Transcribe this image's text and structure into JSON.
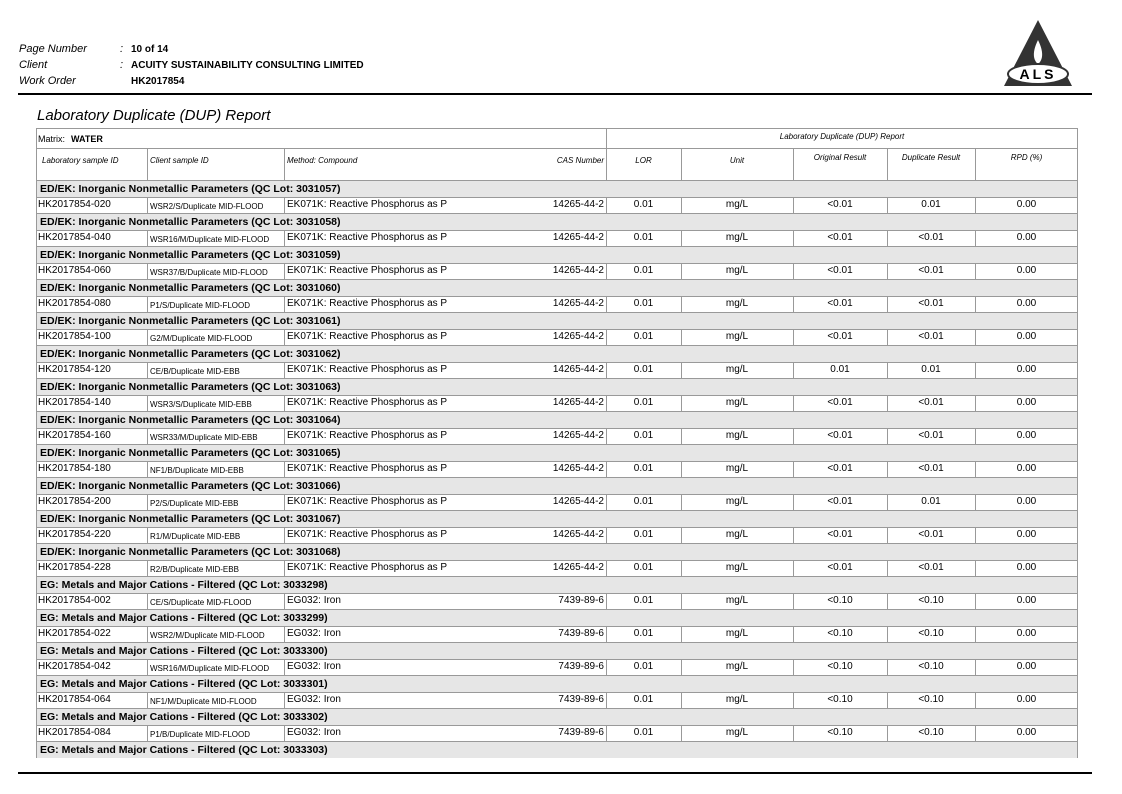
{
  "header": {
    "fields": [
      {
        "label": "Page Number",
        "sep": ":",
        "value": "10 of 14"
      },
      {
        "label": "Client",
        "sep": ":",
        "value": "ACUITY SUSTAINABILITY CONSULTING LIMITED"
      },
      {
        "label": "Work Order",
        "value": "HK2017854"
      }
    ],
    "logo": "ALS"
  },
  "title": "Laboratory Duplicate (DUP) Report",
  "matrix": {
    "label": "Matrix:",
    "value": "WATER"
  },
  "table": {
    "group_header": "Laboratory Duplicate (DUP) Report",
    "columns": [
      "Laboratory sample ID",
      "Client sample ID",
      "Method: Compound",
      "CAS Number",
      "LOR",
      "Unit",
      "Original Result",
      "Duplicate Result",
      "RPD (%)"
    ],
    "groups": [
      {
        "title": "ED/EK: Inorganic Nonmetallic Parameters  (QC Lot: 3031057)",
        "rows": [
          [
            "HK2017854-020",
            "WSR2/S/Duplicate MID-FLOOD",
            "EK071K: Reactive Phosphorus as P",
            "14265-44-2",
            "0.01",
            "mg/L",
            "<0.01",
            "0.01",
            "0.00"
          ]
        ]
      },
      {
        "title": "ED/EK: Inorganic Nonmetallic Parameters  (QC Lot: 3031058)",
        "rows": [
          [
            "HK2017854-040",
            "WSR16/M/Duplicate MID-FLOOD",
            "EK071K: Reactive Phosphorus as P",
            "14265-44-2",
            "0.01",
            "mg/L",
            "<0.01",
            "<0.01",
            "0.00"
          ]
        ]
      },
      {
        "title": "ED/EK: Inorganic Nonmetallic Parameters  (QC Lot: 3031059)",
        "rows": [
          [
            "HK2017854-060",
            "WSR37/B/Duplicate MID-FLOOD",
            "EK071K: Reactive Phosphorus as P",
            "14265-44-2",
            "0.01",
            "mg/L",
            "<0.01",
            "<0.01",
            "0.00"
          ]
        ]
      },
      {
        "title": "ED/EK: Inorganic Nonmetallic Parameters  (QC Lot: 3031060)",
        "rows": [
          [
            "HK2017854-080",
            "P1/S/Duplicate MID-FLOOD",
            "EK071K: Reactive Phosphorus as P",
            "14265-44-2",
            "0.01",
            "mg/L",
            "<0.01",
            "<0.01",
            "0.00"
          ]
        ]
      },
      {
        "title": "ED/EK: Inorganic Nonmetallic Parameters  (QC Lot: 3031061)",
        "rows": [
          [
            "HK2017854-100",
            "G2/M/Duplicate MID-FLOOD",
            "EK071K: Reactive Phosphorus as P",
            "14265-44-2",
            "0.01",
            "mg/L",
            "<0.01",
            "<0.01",
            "0.00"
          ]
        ]
      },
      {
        "title": "ED/EK: Inorganic Nonmetallic Parameters  (QC Lot: 3031062)",
        "rows": [
          [
            "HK2017854-120",
            "CE/B/Duplicate MID-EBB",
            "EK071K: Reactive Phosphorus as P",
            "14265-44-2",
            "0.01",
            "mg/L",
            "0.01",
            "0.01",
            "0.00"
          ]
        ]
      },
      {
        "title": "ED/EK: Inorganic Nonmetallic Parameters  (QC Lot: 3031063)",
        "rows": [
          [
            "HK2017854-140",
            "WSR3/S/Duplicate MID-EBB",
            "EK071K: Reactive Phosphorus as P",
            "14265-44-2",
            "0.01",
            "mg/L",
            "<0.01",
            "<0.01",
            "0.00"
          ]
        ]
      },
      {
        "title": "ED/EK: Inorganic Nonmetallic Parameters  (QC Lot: 3031064)",
        "rows": [
          [
            "HK2017854-160",
            "WSR33/M/Duplicate MID-EBB",
            "EK071K: Reactive Phosphorus as P",
            "14265-44-2",
            "0.01",
            "mg/L",
            "<0.01",
            "<0.01",
            "0.00"
          ]
        ]
      },
      {
        "title": "ED/EK: Inorganic Nonmetallic Parameters  (QC Lot: 3031065)",
        "rows": [
          [
            "HK2017854-180",
            "NF1/B/Duplicate MID-EBB",
            "EK071K: Reactive Phosphorus as P",
            "14265-44-2",
            "0.01",
            "mg/L",
            "<0.01",
            "<0.01",
            "0.00"
          ]
        ]
      },
      {
        "title": "ED/EK: Inorganic Nonmetallic Parameters  (QC Lot: 3031066)",
        "rows": [
          [
            "HK2017854-200",
            "P2/S/Duplicate MID-EBB",
            "EK071K: Reactive Phosphorus as P",
            "14265-44-2",
            "0.01",
            "mg/L",
            "<0.01",
            "0.01",
            "0.00"
          ]
        ]
      },
      {
        "title": "ED/EK: Inorganic Nonmetallic Parameters  (QC Lot: 3031067)",
        "rows": [
          [
            "HK2017854-220",
            "R1/M/Duplicate MID-EBB",
            "EK071K: Reactive Phosphorus as P",
            "14265-44-2",
            "0.01",
            "mg/L",
            "<0.01",
            "<0.01",
            "0.00"
          ]
        ]
      },
      {
        "title": "ED/EK: Inorganic Nonmetallic Parameters  (QC Lot: 3031068)",
        "rows": [
          [
            "HK2017854-228",
            "R2/B/Duplicate MID-EBB",
            "EK071K: Reactive Phosphorus as P",
            "14265-44-2",
            "0.01",
            "mg/L",
            "<0.01",
            "<0.01",
            "0.00"
          ]
        ]
      },
      {
        "title": "EG: Metals and Major Cations - Filtered  (QC Lot: 3033298)",
        "rows": [
          [
            "HK2017854-002",
            "CE/S/Duplicate MID-FLOOD",
            "EG032: Iron",
            "7439-89-6",
            "0.01",
            "mg/L",
            "<0.10",
            "<0.10",
            "0.00"
          ]
        ]
      },
      {
        "title": "EG: Metals and Major Cations - Filtered  (QC Lot: 3033299)",
        "rows": [
          [
            "HK2017854-022",
            "WSR2/M/Duplicate MID-FLOOD",
            "EG032: Iron",
            "7439-89-6",
            "0.01",
            "mg/L",
            "<0.10",
            "<0.10",
            "0.00"
          ]
        ]
      },
      {
        "title": "EG: Metals and Major Cations - Filtered  (QC Lot: 3033300)",
        "rows": [
          [
            "HK2017854-042",
            "WSR16/M/Duplicate MID-FLOOD",
            "EG032: Iron",
            "7439-89-6",
            "0.01",
            "mg/L",
            "<0.10",
            "<0.10",
            "0.00"
          ]
        ]
      },
      {
        "title": "EG: Metals and Major Cations - Filtered  (QC Lot: 3033301)",
        "rows": [
          [
            "HK2017854-064",
            "NF1/M/Duplicate MID-FLOOD",
            "EG032: Iron",
            "7439-89-6",
            "0.01",
            "mg/L",
            "<0.10",
            "<0.10",
            "0.00"
          ]
        ]
      },
      {
        "title": "EG: Metals and Major Cations - Filtered  (QC Lot: 3033302)",
        "rows": [
          [
            "HK2017854-084",
            "P1/B/Duplicate MID-FLOOD",
            "EG032: Iron",
            "7439-89-6",
            "0.01",
            "mg/L",
            "<0.10",
            "<0.10",
            "0.00"
          ]
        ]
      },
      {
        "title": "EG: Metals and Major Cations - Filtered  (QC Lot: 3033303)",
        "rows": []
      }
    ]
  }
}
